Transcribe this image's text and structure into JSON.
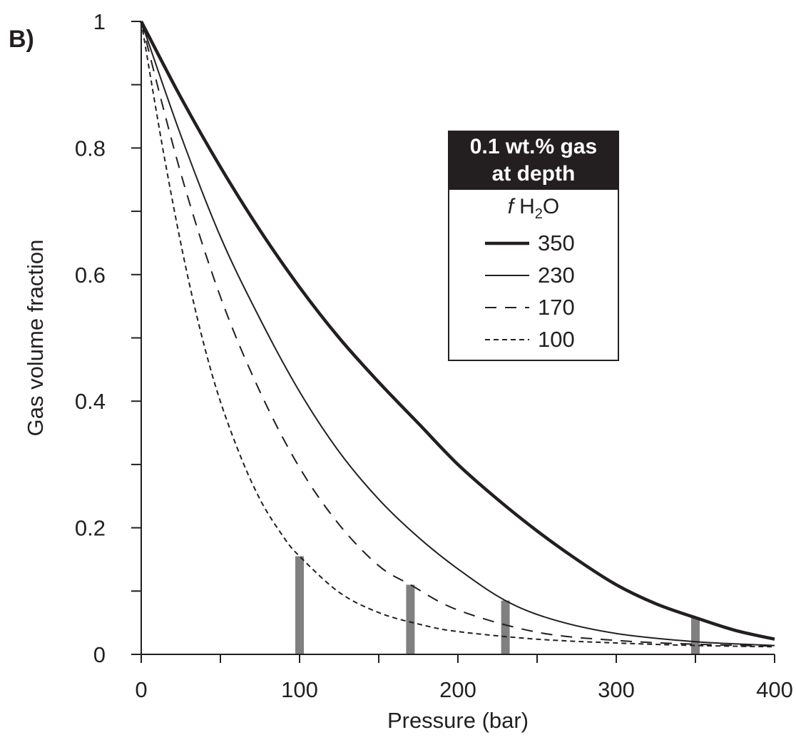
{
  "panel_label": "B)",
  "legend": {
    "header": [
      "0.1 wt.% gas",
      "at depth"
    ],
    "variable_symbol": "f",
    "variable_name": "H",
    "variable_sub": "2",
    "variable_tail": "O"
  },
  "chart_data": {
    "type": "line",
    "title": "",
    "xlabel": "Pressure (bar)",
    "ylabel": "Gas volume fraction",
    "xlim": [
      0,
      400
    ],
    "ylim": [
      0,
      1
    ],
    "x_ticks": [
      0,
      100,
      200,
      300,
      400
    ],
    "x_minor_ticks": [
      50,
      150,
      250,
      350
    ],
    "y_ticks": [
      0,
      0.2,
      0.4,
      0.6,
      0.8,
      1
    ],
    "y_tick_labels": [
      "0",
      "0.2",
      "0.4",
      "0.6",
      "0.8",
      "1"
    ],
    "y_minor_ticks": [
      0.1,
      0.3,
      0.5,
      0.7,
      0.9
    ],
    "legend_position": "upper-right",
    "grid": false,
    "colors": {
      "line": "#231f20",
      "marker_bar": "#808080"
    },
    "series": [
      {
        "name": "350",
        "style": "thick-solid",
        "x": [
          0,
          25,
          50,
          75,
          100,
          125,
          150,
          175,
          200,
          225,
          250,
          275,
          300,
          325,
          350,
          375,
          400
        ],
        "y": [
          1.0,
          0.88,
          0.77,
          0.67,
          0.58,
          0.5,
          0.43,
          0.365,
          0.3,
          0.245,
          0.195,
          0.15,
          0.11,
          0.08,
          0.058,
          0.038,
          0.024
        ]
      },
      {
        "name": "230",
        "style": "thin-solid",
        "x": [
          0,
          25,
          50,
          75,
          100,
          125,
          150,
          175,
          200,
          230,
          260,
          300,
          350,
          400
        ],
        "y": [
          1.0,
          0.82,
          0.66,
          0.53,
          0.415,
          0.32,
          0.245,
          0.185,
          0.135,
          0.085,
          0.055,
          0.033,
          0.02,
          0.014
        ]
      },
      {
        "name": "170",
        "style": "long-dash",
        "x": [
          0,
          25,
          50,
          75,
          100,
          125,
          150,
          170,
          200,
          250,
          300,
          350,
          400
        ],
        "y": [
          1.0,
          0.76,
          0.565,
          0.415,
          0.295,
          0.205,
          0.14,
          0.11,
          0.07,
          0.035,
          0.022,
          0.016,
          0.013
        ]
      },
      {
        "name": "100",
        "style": "short-dash",
        "x": [
          0,
          15,
          30,
          45,
          60,
          75,
          90,
          100,
          125,
          150,
          175,
          200,
          250,
          300,
          350,
          400
        ],
        "y": [
          1.0,
          0.78,
          0.59,
          0.44,
          0.33,
          0.245,
          0.185,
          0.155,
          0.098,
          0.066,
          0.048,
          0.036,
          0.024,
          0.018,
          0.014,
          0.012
        ]
      }
    ],
    "markers": [
      {
        "x": 100,
        "y": 0.155
      },
      {
        "x": 170,
        "y": 0.11
      },
      {
        "x": 230,
        "y": 0.085
      },
      {
        "x": 350,
        "y": 0.058
      }
    ]
  }
}
